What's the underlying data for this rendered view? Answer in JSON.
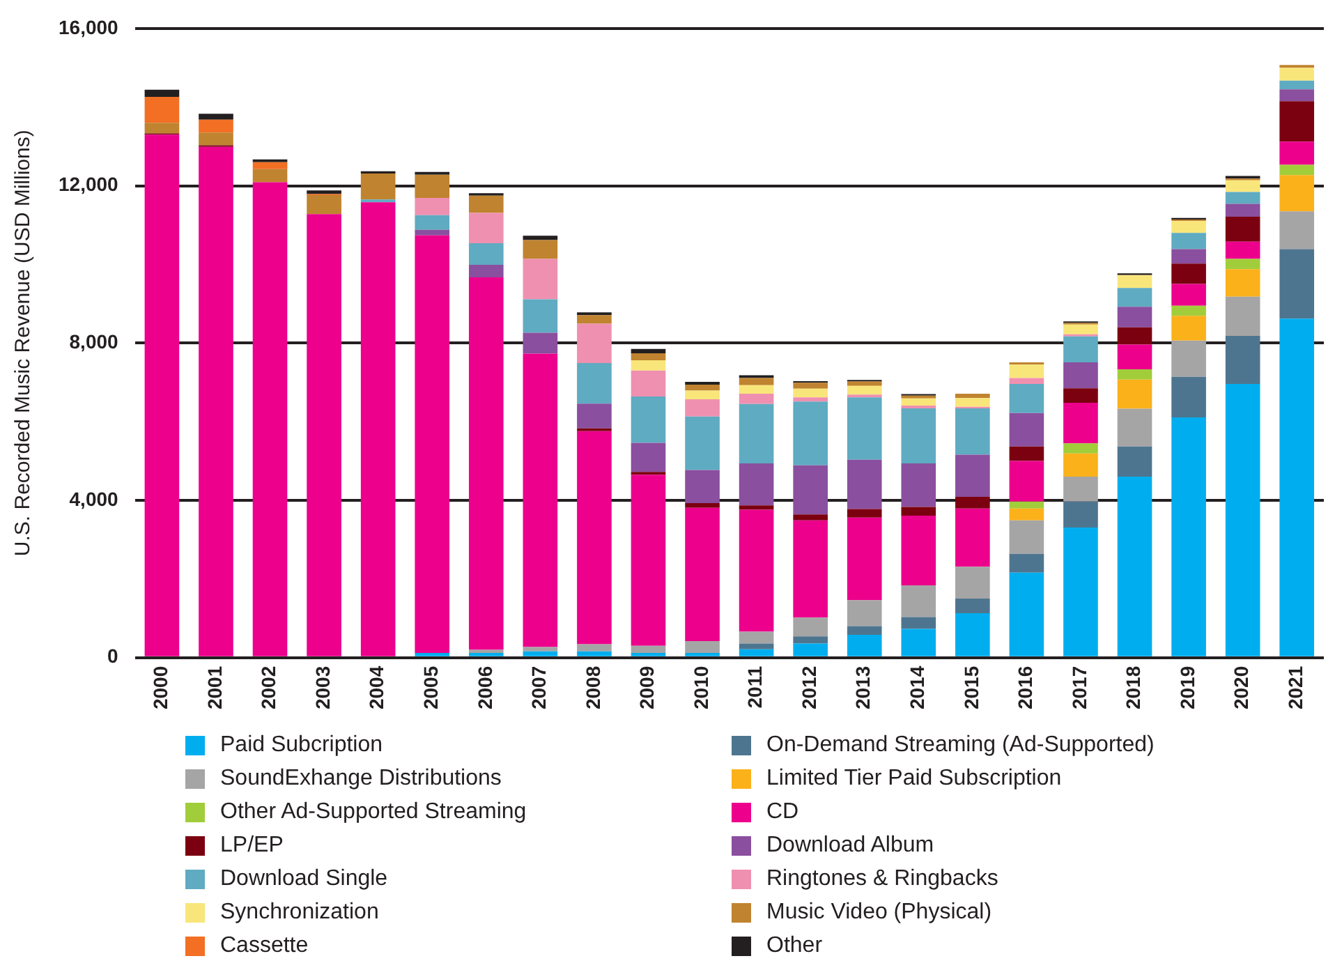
{
  "chart_data": {
    "type": "bar",
    "stacked": true,
    "ylabel": "U.S. Recorded Music Revenue (USD Millions)",
    "categories": [
      "2000",
      "2001",
      "2002",
      "2003",
      "2004",
      "2005",
      "2006",
      "2007",
      "2008",
      "2009",
      "2010",
      "2011",
      "2012",
      "2013",
      "2014",
      "2015",
      "2016",
      "2017",
      "2018",
      "2019",
      "2020",
      "2021"
    ],
    "series": [
      {
        "name": "Paid Subcription",
        "color": "#00aeef",
        "values": [
          0,
          0,
          0,
          0,
          0,
          120,
          120,
          160,
          160,
          120,
          120,
          210,
          360,
          580,
          730,
          1130,
          2160,
          3310,
          4600,
          6110,
          6960,
          8620
        ]
      },
      {
        "name": "On-Demand Streaming (Ad-Supported)",
        "color": "#4e758f",
        "values": [
          0,
          0,
          0,
          0,
          0,
          0,
          0,
          0,
          0,
          0,
          0,
          150,
          180,
          220,
          300,
          370,
          480,
          660,
          770,
          1030,
          1220,
          1770
        ]
      },
      {
        "name": "SoundExhange Distributions",
        "color": "#a6a5a5",
        "values": [
          0,
          0,
          0,
          0,
          0,
          0,
          80,
          110,
          180,
          180,
          300,
          300,
          480,
          660,
          810,
          810,
          850,
          630,
          960,
          920,
          1000,
          960
        ]
      },
      {
        "name": "Limited Tier Paid Subscription",
        "color": "#fbb11a",
        "values": [
          0,
          0,
          0,
          0,
          0,
          0,
          0,
          0,
          0,
          0,
          0,
          0,
          0,
          0,
          0,
          0,
          300,
          590,
          740,
          630,
          700,
          920
        ]
      },
      {
        "name": "Other Ad-Supported Streaming",
        "color": "#a2cd3a",
        "values": [
          0,
          0,
          0,
          0,
          0,
          0,
          0,
          0,
          0,
          0,
          0,
          0,
          0,
          0,
          0,
          0,
          180,
          260,
          260,
          260,
          260,
          260
        ]
      },
      {
        "name": "CD",
        "color": "#ec008c",
        "values": [
          13300,
          12990,
          12090,
          11280,
          11580,
          10620,
          9470,
          7460,
          5420,
          4350,
          3390,
          3100,
          2470,
          2100,
          1770,
          1480,
          1030,
          1030,
          630,
          550,
          440,
          590
        ]
      },
      {
        "name": "LP/EP",
        "color": "#7b0010",
        "values": [
          30,
          40,
          0,
          0,
          0,
          0,
          0,
          0,
          70,
          70,
          120,
          110,
          150,
          220,
          220,
          300,
          370,
          370,
          440,
          520,
          630,
          1030
        ]
      },
      {
        "name": "Download Album",
        "color": "#8a4f9e",
        "values": [
          0,
          0,
          0,
          0,
          0,
          140,
          320,
          530,
          630,
          740,
          840,
          1070,
          1250,
          1250,
          1110,
          1070,
          850,
          660,
          520,
          370,
          330,
          300
        ]
      },
      {
        "name": "Download Single",
        "color": "#5fabc1",
        "values": [
          0,
          0,
          0,
          0,
          70,
          370,
          550,
          850,
          1030,
          1180,
          1360,
          1510,
          1620,
          1590,
          1400,
          1180,
          740,
          660,
          480,
          410,
          300,
          220
        ]
      },
      {
        "name": "Ringtones & Ringbacks",
        "color": "#ef90b0",
        "values": [
          0,
          0,
          0,
          0,
          0,
          440,
          770,
          1030,
          1000,
          660,
          440,
          260,
          110,
          70,
          70,
          40,
          150,
          50,
          0,
          0,
          0,
          0
        ]
      },
      {
        "name": "Synchronization",
        "color": "#f9e67a",
        "values": [
          0,
          0,
          0,
          0,
          0,
          0,
          0,
          0,
          0,
          260,
          220,
          220,
          220,
          220,
          180,
          220,
          340,
          250,
          330,
          300,
          300,
          330
        ]
      },
      {
        "name": "Music Video (Physical)",
        "color": "#c0832f",
        "values": [
          270,
          320,
          330,
          480,
          660,
          590,
          440,
          480,
          220,
          180,
          150,
          180,
          150,
          110,
          70,
          110,
          60,
          40,
          0,
          40,
          40,
          70
        ]
      },
      {
        "name": "Cassette",
        "color": "#f26f24",
        "values": [
          660,
          330,
          180,
          30,
          0,
          0,
          0,
          0,
          0,
          0,
          0,
          0,
          0,
          0,
          0,
          0,
          0,
          0,
          0,
          0,
          0,
          0
        ]
      },
      {
        "name": "Other",
        "color": "#231f20",
        "values": [
          180,
          150,
          70,
          90,
          60,
          70,
          60,
          110,
          70,
          110,
          70,
          70,
          40,
          40,
          40,
          0,
          0,
          40,
          40,
          40,
          70,
          0
        ]
      }
    ],
    "ylim": [
      0,
      16000
    ],
    "yticks": [
      {
        "value": 0,
        "label": "0"
      },
      {
        "value": 4000,
        "label": "4,000"
      },
      {
        "value": 8000,
        "label": "8,000"
      },
      {
        "value": 12000,
        "label": "12,000"
      },
      {
        "value": 16000,
        "label": "16,000"
      }
    ],
    "grid": "y",
    "legend": "bottom"
  }
}
